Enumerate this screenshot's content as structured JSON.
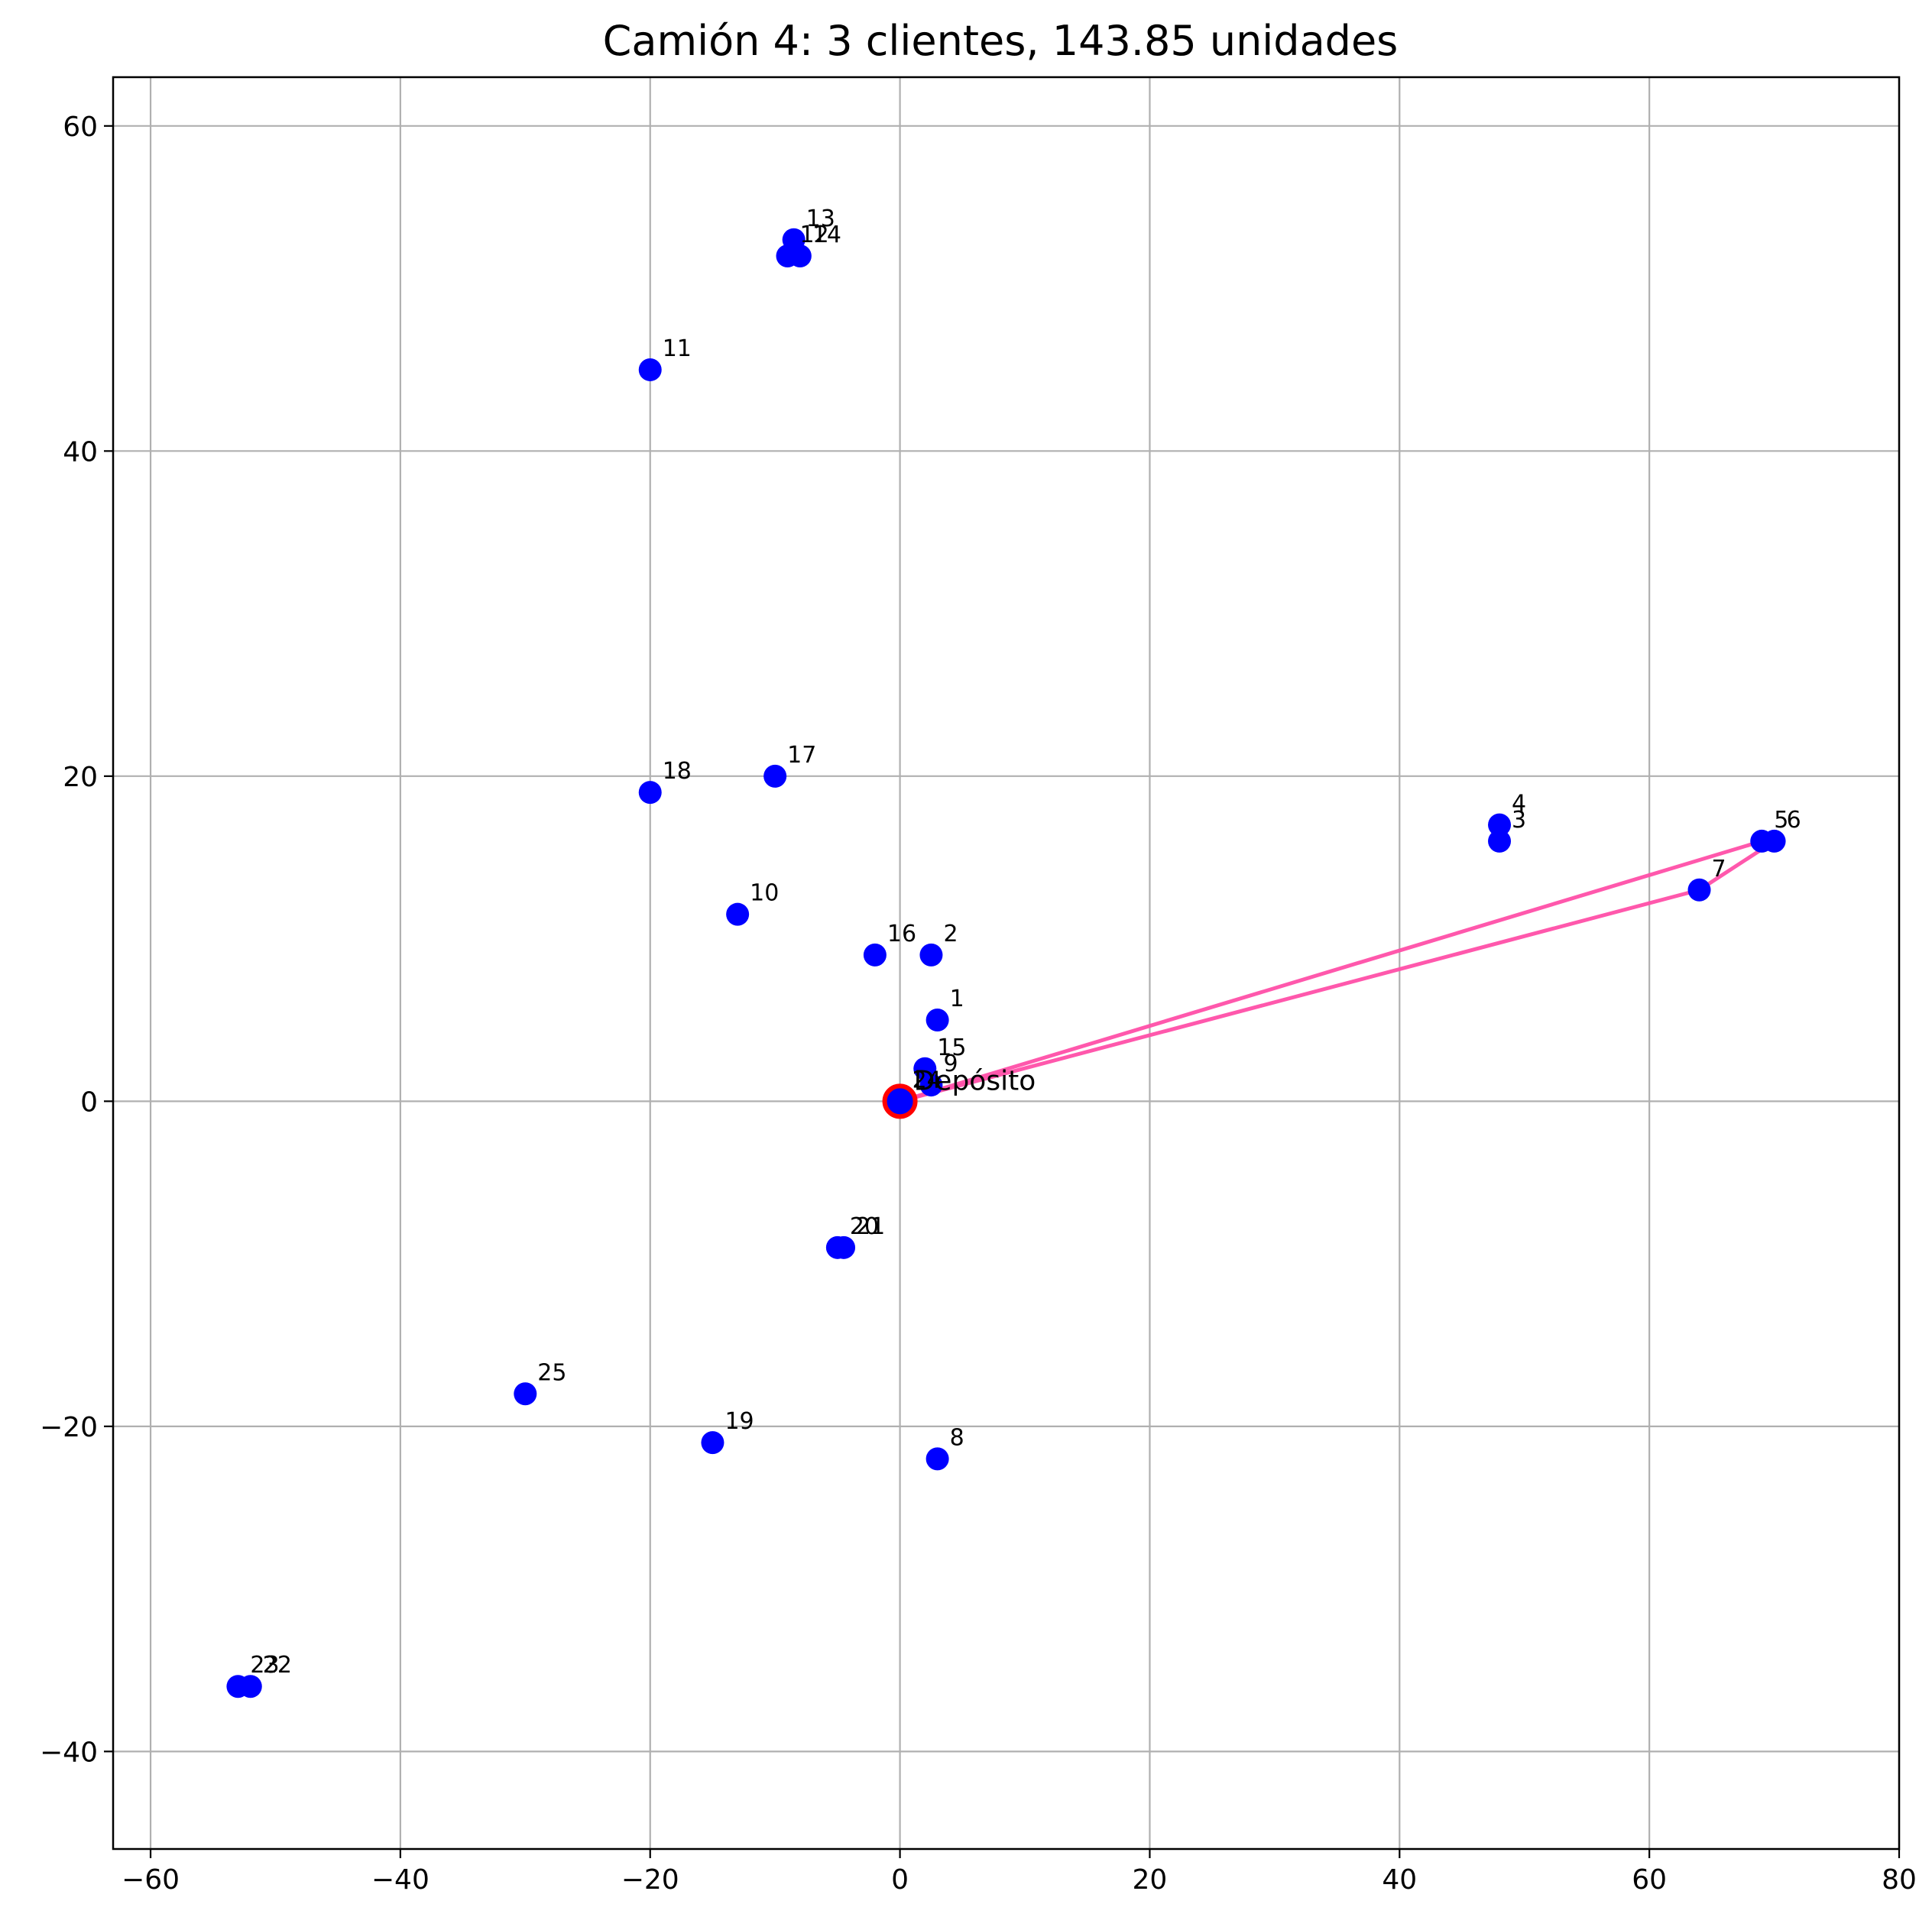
{
  "chart_data": {
    "type": "scatter",
    "title": "Camión 4: 3 clientes, 143.85 unidades",
    "xlabel": "",
    "ylabel": "",
    "xlim": [
      -63,
      80
    ],
    "ylim": [
      -46,
      63
    ],
    "grid": true,
    "x_ticks": [
      -60,
      -40,
      -20,
      0,
      20,
      40,
      60,
      80
    ],
    "y_ticks": [
      -40,
      -20,
      0,
      20,
      40,
      60
    ],
    "x_tick_labels": [
      "−60",
      "−40",
      "−20",
      "0",
      "20",
      "40",
      "60",
      "80"
    ],
    "y_tick_labels": [
      "−40",
      "−20",
      "0",
      "20",
      "40",
      "60"
    ],
    "colors": {
      "customers": "#0000ff",
      "depot": "#ff0000",
      "route": "#ff4fa8"
    },
    "depot": {
      "x": 0,
      "y": 0,
      "label": "Depósito"
    },
    "customers": [
      {
        "id": "1",
        "x": 3,
        "y": 5
      },
      {
        "id": "2",
        "x": 2.5,
        "y": 9
      },
      {
        "id": "3",
        "x": 48,
        "y": 16
      },
      {
        "id": "4",
        "x": 48,
        "y": 17
      },
      {
        "id": "5",
        "x": 69,
        "y": 16
      },
      {
        "id": "6",
        "x": 70,
        "y": 16
      },
      {
        "id": "7",
        "x": 64,
        "y": 13
      },
      {
        "id": "8",
        "x": 3,
        "y": -22
      },
      {
        "id": "9",
        "x": 2.5,
        "y": 1
      },
      {
        "id": "10",
        "x": -13,
        "y": 11.5
      },
      {
        "id": "11",
        "x": -20,
        "y": 45
      },
      {
        "id": "12",
        "x": -9,
        "y": 52
      },
      {
        "id": "13",
        "x": -8.5,
        "y": 53
      },
      {
        "id": "14",
        "x": -8,
        "y": 52
      },
      {
        "id": "15",
        "x": 2,
        "y": 2
      },
      {
        "id": "16",
        "x": -2,
        "y": 9
      },
      {
        "id": "17",
        "x": -10,
        "y": 20
      },
      {
        "id": "18",
        "x": -20,
        "y": 19
      },
      {
        "id": "19",
        "x": -15,
        "y": -21
      },
      {
        "id": "20",
        "x": -5,
        "y": -9
      },
      {
        "id": "21",
        "x": -4.5,
        "y": -9
      },
      {
        "id": "22",
        "x": -52,
        "y": -36
      },
      {
        "id": "23",
        "x": -53,
        "y": -36
      },
      {
        "id": "24",
        "x": 0,
        "y": 0
      },
      {
        "id": "25",
        "x": -30,
        "y": -18
      }
    ],
    "route": [
      {
        "x": 0,
        "y": 0
      },
      {
        "x": 64,
        "y": 13
      },
      {
        "x": 70,
        "y": 16
      },
      {
        "x": 69,
        "y": 16
      },
      {
        "x": 0,
        "y": 0
      }
    ]
  }
}
